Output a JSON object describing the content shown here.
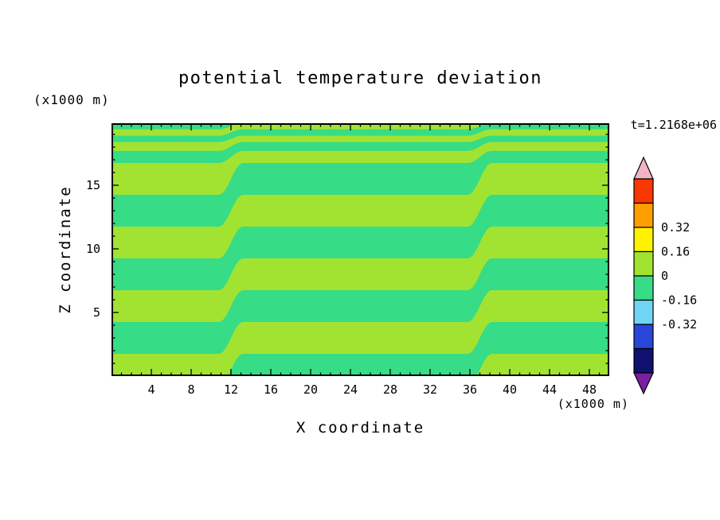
{
  "chart_data": {
    "type": "filled-contour",
    "title": "potential temperature deviation",
    "time_annotation": "t=1.2168e+06",
    "xlabel": "X coordinate",
    "ylabel": "Z coordinate",
    "x_unit": "(x1000 m)",
    "y_unit": "(x1000 m)",
    "xlim": [
      0,
      50
    ],
    "zlim": [
      0,
      19.875
    ],
    "x_major_ticks": [
      4,
      8,
      12,
      16,
      20,
      24,
      28,
      32,
      36,
      40,
      44,
      48
    ],
    "x_minor_tick_step": 1,
    "z_major_ticks": [
      5,
      10,
      15
    ],
    "z_minor_tick_step": 1,
    "grid": false,
    "contour_interval": 0.16,
    "field_colors": {
      "positive_band": "#A2E332",
      "negative_band": "#36DC86"
    },
    "band_model": {
      "description": "Horizontal bands of alternating positive (yellow-green) and negative (spring-green) potential temperature deviation around 0; band boundaries shift upward by half a vertical wavelength across two smooth step zones near x=12 and x=37 (x1000 m).",
      "phase_levels_z": [
        -5.75,
        -3.25,
        -0.75,
        1.75,
        4.25,
        6.75,
        9.25,
        11.75,
        14.25,
        16.75,
        17.7,
        18.4,
        18.9,
        19.4,
        19.9,
        20.4,
        21.0,
        21.6,
        22.2
      ],
      "step_centers_x": [
        12.0,
        37.0
      ],
      "step_half_width_x": 1.2
    },
    "colorbar": {
      "labels": [
        "0.32",
        "0.16",
        "0",
        "-0.16",
        "-0.32"
      ],
      "label_boundary_indices": [
        2,
        3,
        4,
        5,
        6
      ],
      "segment_colors_top_to_bottom": [
        "#F83800",
        "#FF9E00",
        "#FFF200",
        "#A2E332",
        "#36DC86",
        "#70D5F5",
        "#2847D8",
        "#101070"
      ],
      "arrow_top_color": "#F2B4C4",
      "arrow_bottom_color": "#7A1FA0"
    }
  }
}
